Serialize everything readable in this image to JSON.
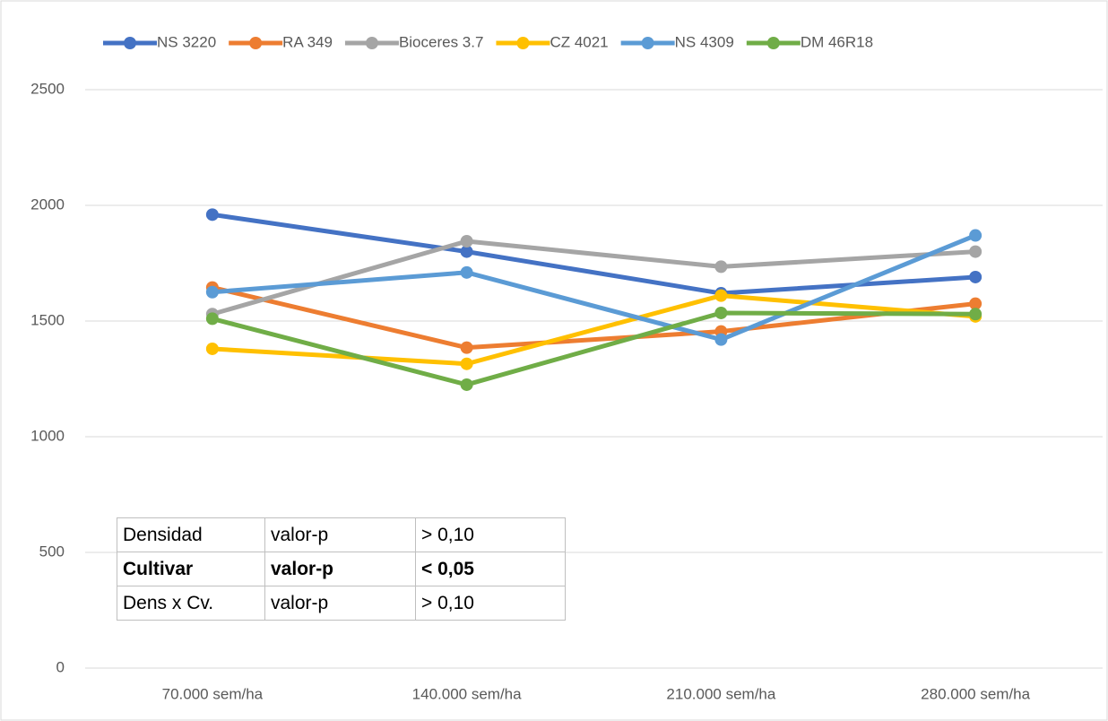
{
  "chart_data": {
    "type": "line",
    "categories": [
      "70.000 sem/ha",
      "140.000 sem/ha",
      "210.000 sem/ha",
      "280.000 sem/ha"
    ],
    "series": [
      {
        "name": "NS 3220",
        "color": "#4472c4",
        "values": [
          1960,
          1800,
          1620,
          1690
        ]
      },
      {
        "name": "RA 349",
        "color": "#ed7d31",
        "values": [
          1645,
          1385,
          1455,
          1575
        ]
      },
      {
        "name": "Bioceres 3.7",
        "color": "#a5a5a5",
        "values": [
          1530,
          1845,
          1735,
          1800
        ]
      },
      {
        "name": "CZ 4021",
        "color": "#ffc000",
        "values": [
          1380,
          1315,
          1610,
          1520
        ]
      },
      {
        "name": "NS 4309",
        "color": "#5b9bd5",
        "values": [
          1625,
          1710,
          1420,
          1870
        ]
      },
      {
        "name": "DM 46R18",
        "color": "#70ad47",
        "values": [
          1510,
          1225,
          1535,
          1530
        ]
      }
    ],
    "ylim": [
      0,
      2500
    ],
    "yticks": [
      0,
      500,
      1000,
      1500,
      2000,
      2500
    ],
    "grid": true,
    "legend": "top"
  },
  "table": {
    "rows": [
      [
        "Densidad",
        "valor-p",
        "> 0,10"
      ],
      [
        "Cultivar",
        "valor-p",
        "< 0,05"
      ],
      [
        "Dens x Cv.",
        "valor-p",
        "> 0,10"
      ]
    ]
  }
}
